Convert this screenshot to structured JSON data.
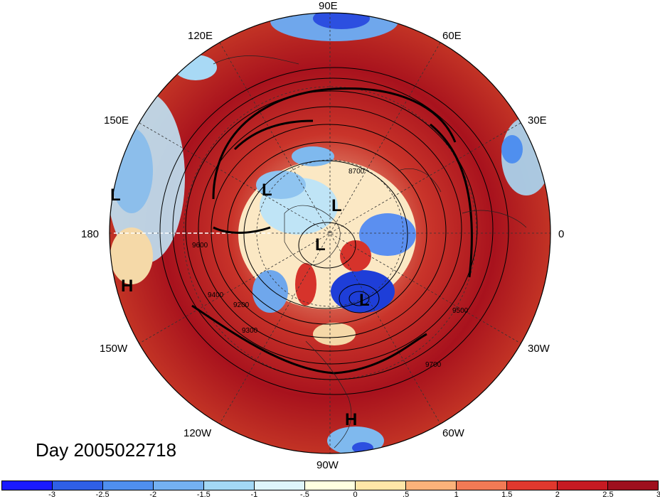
{
  "map": {
    "projection": "north polar stereographic",
    "longitude_labels": [
      "90E",
      "60E",
      "30E",
      "0",
      "30W",
      "60W",
      "90W",
      "120W",
      "150W",
      "180",
      "150E",
      "120E"
    ],
    "contour_labels": [
      "9700",
      "9600",
      "9500",
      "9400",
      "9300",
      "9200",
      "8700"
    ],
    "pressure_centers": [
      {
        "name": "low-center",
        "label": "L"
      },
      {
        "name": "low-center",
        "label": "L"
      },
      {
        "name": "low-center",
        "label": "L"
      },
      {
        "name": "low-center",
        "label": "L"
      },
      {
        "name": "low-center",
        "label": "L"
      },
      {
        "name": "high-center",
        "label": "H"
      },
      {
        "name": "high-center",
        "label": "H"
      }
    ]
  },
  "title": "Day 2005022718",
  "colorbar": {
    "colors": [
      "#1a1aff",
      "#2f5fe6",
      "#4f8fef",
      "#74b1f2",
      "#a3d8f5",
      "#dff5fb",
      "#ffffe0",
      "#ffe6a8",
      "#fbb27a",
      "#f27a55",
      "#e0382e",
      "#c61a22",
      "#9e0f1d"
    ],
    "tick_labels": [
      "-3",
      "-2.5",
      "-2",
      "-1.5",
      "-1",
      "-.5",
      "0",
      ".5",
      "1",
      "1.5",
      "2",
      "2.5",
      "3"
    ]
  }
}
